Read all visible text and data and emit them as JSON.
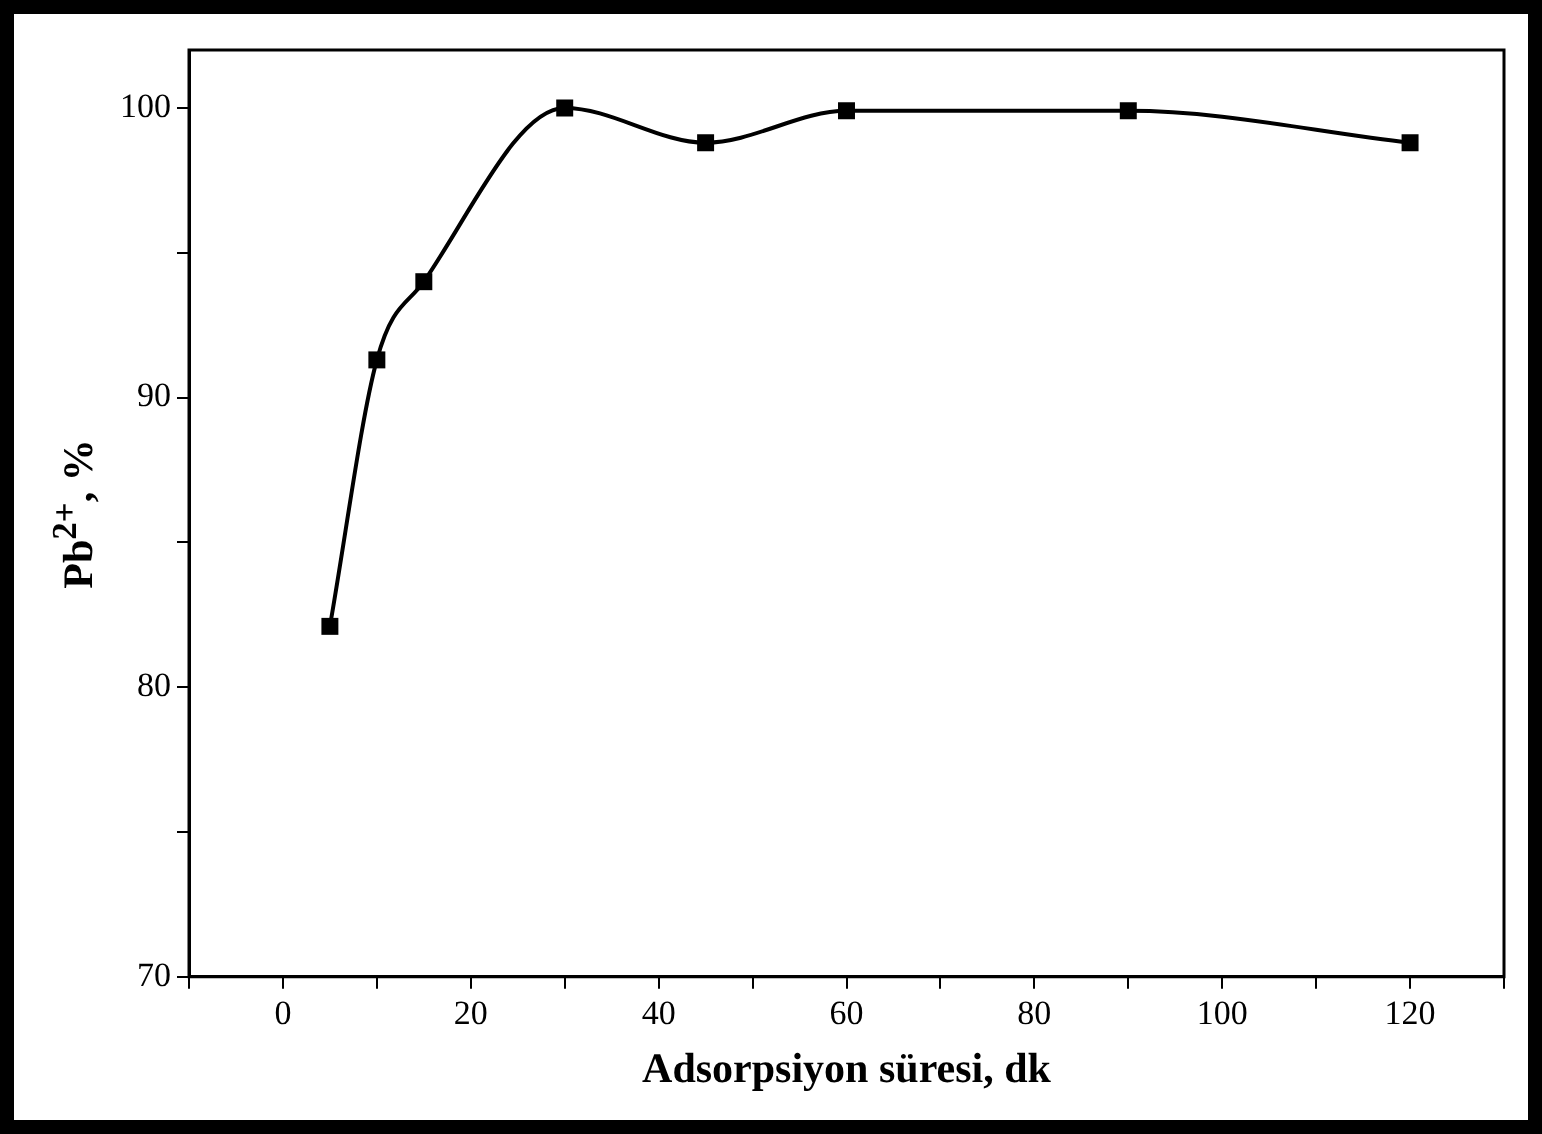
{
  "chart_data": {
    "type": "line",
    "xlabel": "Adsorpsiyon süresi, dk",
    "ylabel": "Pb$^{2+}$, %",
    "x": [
      5,
      10,
      15,
      30,
      45,
      60,
      90,
      120
    ],
    "series": [
      {
        "color": "#000000",
        "values": [
          82.1,
          91.3,
          94.0,
          100,
          98.8,
          99.9,
          99.9,
          98.8
        ]
      }
    ],
    "xlim": [
      -10,
      130
    ],
    "xticks": [
      {
        "value": -10,
        "label": null
      },
      0,
      {
        "value": 10,
        "label": null
      },
      20,
      {
        "value": 30,
        "label": null
      },
      40,
      {
        "value": 50,
        "label": null
      },
      60,
      {
        "value": 70,
        "label": null
      },
      80,
      {
        "value": 90,
        "label": null
      },
      100,
      {
        "value": 110,
        "label": null
      },
      120,
      {
        "value": 130,
        "label": null
      }
    ],
    "ylim": [
      70,
      102
    ],
    "yticks": [
      70,
      {
        "value": 75,
        "label": null
      },
      80,
      {
        "value": 85,
        "label": null
      },
      90,
      {
        "value": 95,
        "label": null
      },
      100
    ],
    "marker": "square",
    "line_style": "solid"
  }
}
